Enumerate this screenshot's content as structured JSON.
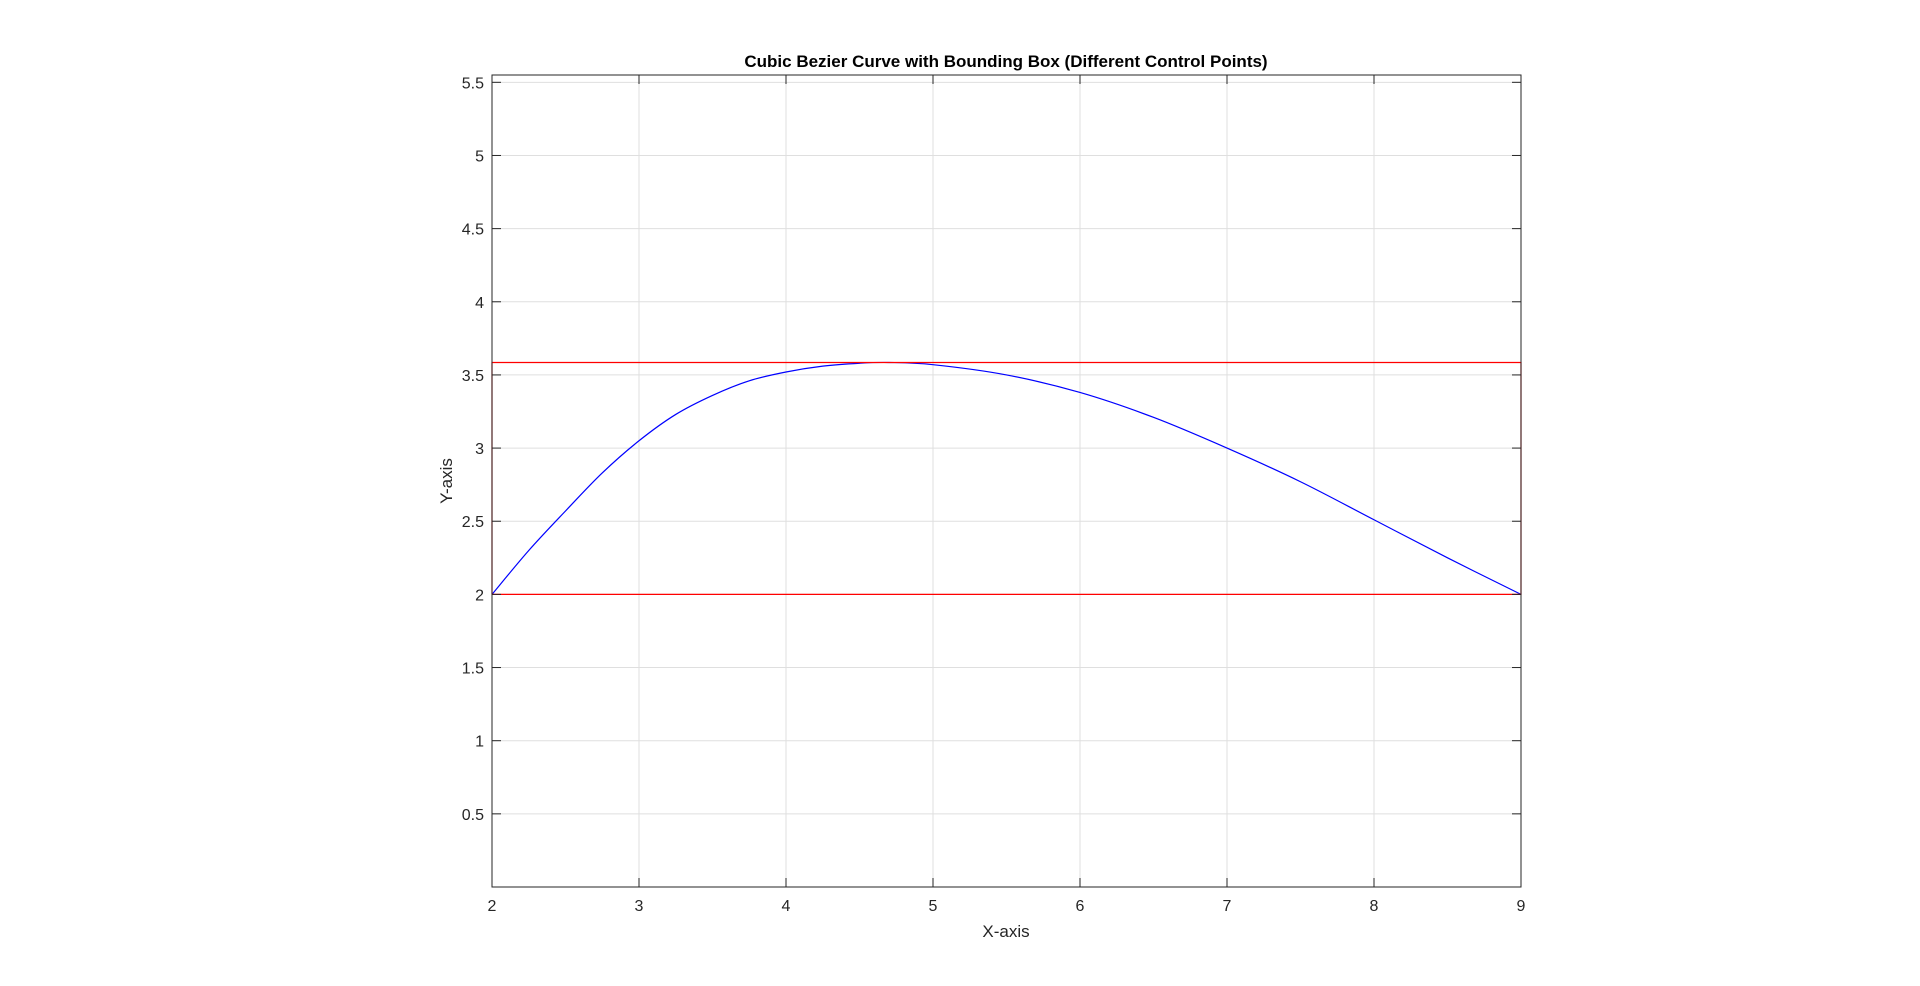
{
  "chart_data": {
    "type": "line",
    "title": "Cubic Bezier Curve with Bounding Box (Different Control Points)",
    "xlabel": "X-axis",
    "ylabel": "Y-axis",
    "xlim": [
      2,
      9
    ],
    "ylim": [
      0,
      5.55
    ],
    "grid": true,
    "xticks": [
      2,
      3,
      4,
      5,
      6,
      7,
      8,
      9
    ],
    "xtick_labels": [
      "2",
      "3",
      "4",
      "5",
      "6",
      "7",
      "8",
      "9"
    ],
    "yticks": [
      0.5,
      1,
      1.5,
      2,
      2.5,
      3,
      3.5,
      4,
      4.5,
      5,
      5.5
    ],
    "ytick_labels": [
      "0.5",
      "1",
      "1.5",
      "2",
      "2.5",
      "3",
      "3.5",
      "4",
      "4.5",
      "5",
      "5.5"
    ],
    "series": [
      {
        "color": "#0000ff",
        "x": [
          2,
          2.25,
          2.5,
          2.75,
          3,
          3.25,
          3.5,
          3.75,
          4,
          4.25,
          4.5,
          4.7,
          5,
          5.5,
          6,
          6.5,
          7,
          7.5,
          8,
          8.5,
          9
        ],
        "y": [
          2,
          2.3,
          2.57,
          2.83,
          3.05,
          3.23,
          3.36,
          3.46,
          3.52,
          3.56,
          3.58,
          3.585,
          3.57,
          3.5,
          3.38,
          3.21,
          3.0,
          2.77,
          2.51,
          2.25,
          2.0
        ]
      },
      {
        "color": "#ff0000",
        "x": [
          2,
          9,
          9,
          2,
          2
        ],
        "y": [
          2,
          2,
          3.585,
          3.585,
          2
        ]
      }
    ]
  }
}
